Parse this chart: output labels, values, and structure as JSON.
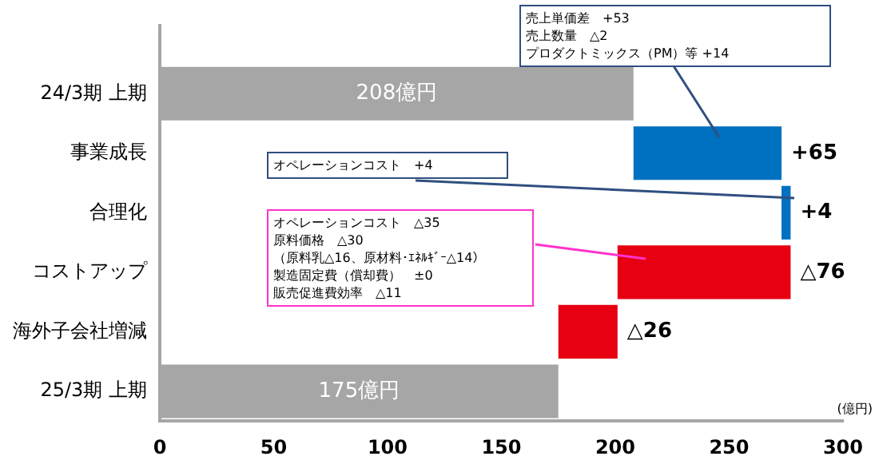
{
  "chart_data": {
    "type": "bar",
    "orientation": "horizontal",
    "xlabel": "(億円)",
    "categories": [
      "24/3期 上期",
      "事業成長",
      "合理化",
      "コストアップ",
      "海外子会社増減",
      "25/3期 上期"
    ],
    "values": [
      208,
      65,
      4,
      -76,
      -26,
      175
    ],
    "base": [
      0,
      208,
      273,
      277,
      201,
      0
    ],
    "colors": [
      "#a6a6a6",
      "#0070c0",
      "#0070c0",
      "#e60012",
      "#e60012",
      "#a6a6a6"
    ],
    "value_labels": [
      "208億円",
      "+65",
      "+4",
      "△76",
      "△26",
      "175億円"
    ],
    "xlim": [
      0,
      300
    ],
    "xticks": [
      0,
      50,
      100,
      150,
      200,
      250,
      300
    ],
    "grid": false,
    "legend": false,
    "annotations": [
      "売上単価差　+53",
      "売上数量　△2",
      "プロダクトミックス（PM）等 +14",
      "オペレーションコスト　+4",
      "オペレーションコスト　△35",
      "原料価格　△30",
      "（原料乳△16、原材料･ｴﾈﾙｷﾞｰ△14）",
      "製造固定費（償却費）　±0",
      "販売促進費効率　△11"
    ]
  }
}
